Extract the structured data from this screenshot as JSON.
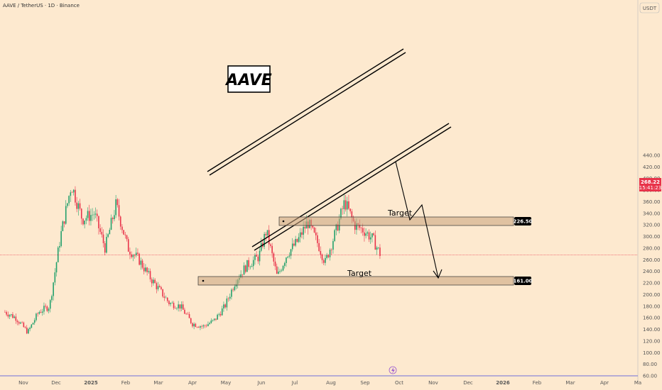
{
  "header": {
    "symbol_title": "AAVE / TetherUS · 1D · Binance",
    "currency": "USDT"
  },
  "price_badges": {
    "current_price": "268.22",
    "countdown": "15:41:23",
    "target_1": "226.50",
    "target_2": "161.00"
  },
  "annotations": {
    "logo_label": "AAVE",
    "target_label_1": "Target",
    "target_label_2": "Target"
  },
  "colors": {
    "background": "#fde9cf",
    "up_candle": "#22a06b",
    "down_candle": "#e8334a",
    "price_line": "#e8334a",
    "target_zone": "#c9a27c",
    "badge": "#000000"
  },
  "chart_data": {
    "type": "candlestick",
    "title": "AAVE / TetherUS · 1D · Binance",
    "ylabel": "USDT",
    "ylim": [
      60,
      460
    ],
    "y_ticks": [
      60,
      80,
      100,
      120,
      140,
      160,
      180,
      200,
      220,
      240,
      260,
      280,
      300,
      320,
      340,
      360,
      380,
      400,
      420,
      440
    ],
    "x_ticks": [
      "Nov",
      "Dec",
      "2025",
      "Feb",
      "Mar",
      "Apr",
      "May",
      "Jun",
      "Jul",
      "Aug",
      "Sep",
      "Oct",
      "Nov",
      "Dec",
      "2026",
      "Feb",
      "Mar",
      "Apr",
      "Ma"
    ],
    "current_price": 268.22,
    "targets": [
      226.5,
      161.0
    ],
    "price_path": [
      [
        "2024-10-15",
        170
      ],
      [
        "2024-10-25",
        160
      ],
      [
        "2024-11-05",
        135
      ],
      [
        "2024-11-15",
        170
      ],
      [
        "2024-11-25",
        180
      ],
      [
        "2024-12-05",
        300
      ],
      [
        "2024-12-15",
        390
      ],
      [
        "2024-12-25",
        330
      ],
      [
        "2025-01-05",
        340
      ],
      [
        "2025-01-15",
        280
      ],
      [
        "2025-01-25",
        355
      ],
      [
        "2025-02-05",
        280
      ],
      [
        "2025-02-15",
        260
      ],
      [
        "2025-02-25",
        230
      ],
      [
        "2025-03-05",
        210
      ],
      [
        "2025-03-15",
        185
      ],
      [
        "2025-03-25",
        180
      ],
      [
        "2025-04-05",
        150
      ],
      [
        "2025-04-15",
        145
      ],
      [
        "2025-04-25",
        155
      ],
      [
        "2025-05-05",
        180
      ],
      [
        "2025-05-15",
        225
      ],
      [
        "2025-05-25",
        250
      ],
      [
        "2025-06-05",
        265
      ],
      [
        "2025-06-12",
        310
      ],
      [
        "2025-06-22",
        230
      ],
      [
        "2025-07-01",
        270
      ],
      [
        "2025-07-10",
        290
      ],
      [
        "2025-07-20",
        325
      ],
      [
        "2025-07-30",
        285
      ],
      [
        "2025-08-05",
        255
      ],
      [
        "2025-08-15",
        310
      ],
      [
        "2025-08-23",
        360
      ],
      [
        "2025-09-01",
        320
      ],
      [
        "2025-09-10",
        310
      ],
      [
        "2025-09-18",
        295
      ],
      [
        "2025-09-25",
        268
      ]
    ]
  }
}
